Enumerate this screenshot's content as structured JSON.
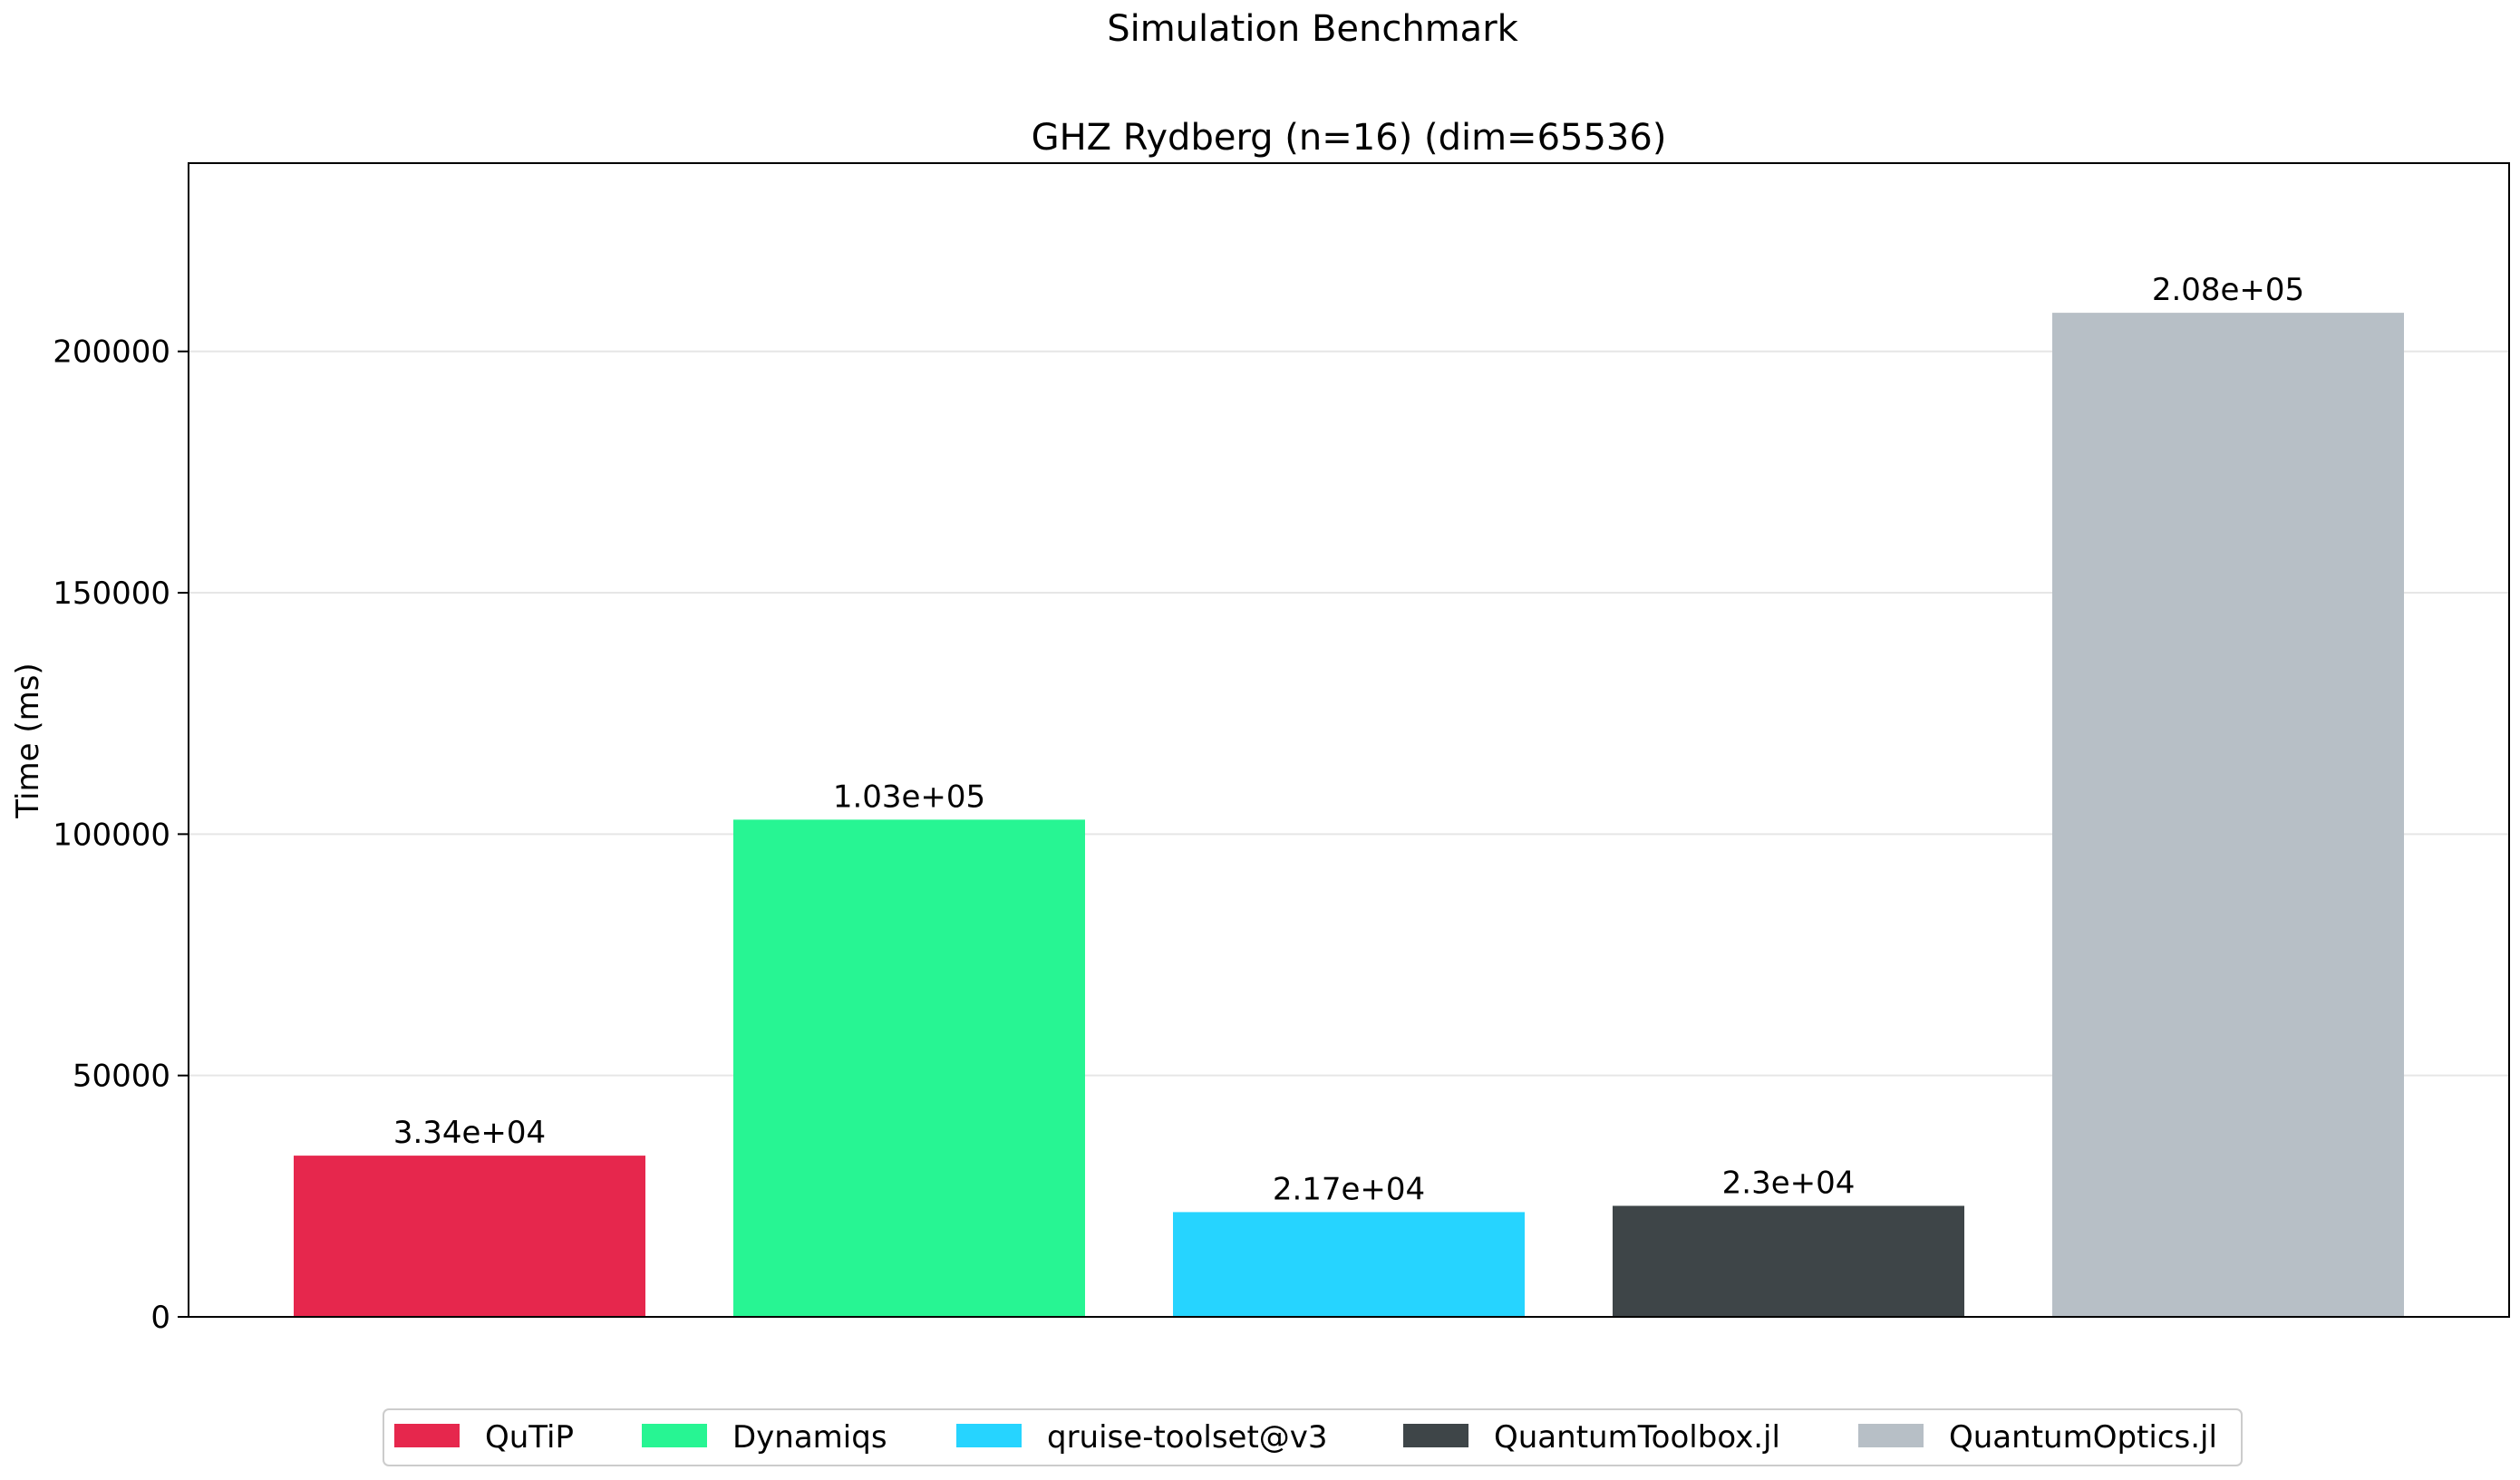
{
  "chart_data": {
    "type": "bar",
    "suptitle": "Simulation Benchmark",
    "title": "GHZ Rydberg (n=16) (dim=65536)",
    "xlabel": "",
    "ylabel": "Time (ms)",
    "ylim": [
      0,
      239000
    ],
    "yticks": [
      0,
      50000,
      100000,
      150000,
      200000
    ],
    "ytick_labels": [
      "0",
      "50000",
      "100000",
      "150000",
      "200000"
    ],
    "grid": "horizontal",
    "legend_position": "bottom-center",
    "series": [
      {
        "name": "QuTiP",
        "value": 33400,
        "label": "3.34e+04",
        "color": "#e6274d"
      },
      {
        "name": "Dynamiqs",
        "value": 103000,
        "label": "1.03e+05",
        "color": "#27f593"
      },
      {
        "name": "qruise-toolset@v3",
        "value": 21700,
        "label": "2.17e+04",
        "color": "#26d4ff"
      },
      {
        "name": "QuantumToolbox.jl",
        "value": 23000,
        "label": "2.3e+04",
        "color": "#3e4548"
      },
      {
        "name": "QuantumOptics.jl",
        "value": 208000,
        "label": "2.08e+05",
        "color": "#b7bfc6"
      }
    ]
  }
}
